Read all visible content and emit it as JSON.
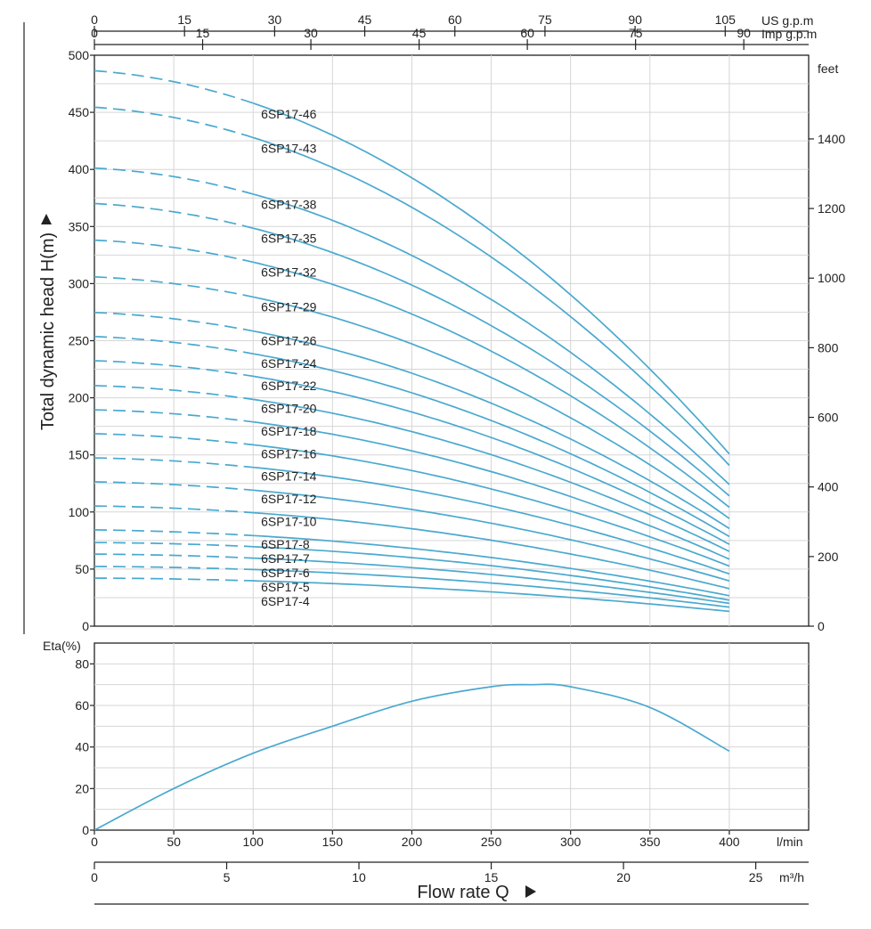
{
  "colors": {
    "curve": "#4aa9cf",
    "axis": "#222222",
    "grid": "#d6d6d6"
  },
  "chart_data": [
    {
      "type": "line",
      "ylabel": "Total dynamic head H(m)",
      "xlim": [
        0,
        450
      ],
      "ylim": [
        0,
        500
      ],
      "x_unit": "l/min",
      "y_ticks": [
        0,
        50,
        100,
        150,
        200,
        250,
        300,
        350,
        400,
        450,
        500
      ],
      "right_axis": {
        "unit": "feet",
        "ticks": [
          0,
          200,
          400,
          600,
          800,
          1000,
          1200,
          1400
        ],
        "factor": 3.28084
      },
      "top_axes": [
        {
          "unit": "US g.p.m",
          "ticks": [
            0,
            15,
            30,
            45,
            60,
            75,
            90,
            105
          ],
          "lmin_per_unit": 3.785
        },
        {
          "unit": "Imp g.p.m",
          "ticks": [
            0,
            15,
            30,
            45,
            60,
            75,
            90
          ],
          "lmin_per_unit": 4.546
        }
      ],
      "x_curve": [
        0,
        100,
        200,
        300,
        400
      ],
      "dashed_until": 100,
      "series": [
        {
          "name": "6SP17-46",
          "values": [
            485,
            461,
            392,
            288,
            152
          ]
        },
        {
          "name": "6SP17-43",
          "values": [
            453,
            431,
            366,
            269,
            142
          ]
        },
        {
          "name": "6SP17-38",
          "values": [
            400,
            381,
            324,
            238,
            125
          ]
        },
        {
          "name": "6SP17-35",
          "values": [
            369,
            351,
            298,
            219,
            115
          ]
        },
        {
          "name": "6SP17-32",
          "values": [
            337,
            321,
            273,
            200,
            105
          ]
        },
        {
          "name": "6SP17-29",
          "values": [
            305,
            290,
            247,
            181,
            95
          ]
        },
        {
          "name": "6SP17-26",
          "values": [
            274,
            260,
            221,
            163,
            86
          ]
        },
        {
          "name": "6SP17-24",
          "values": [
            253,
            240,
            204,
            150,
            79
          ]
        },
        {
          "name": "6SP17-22",
          "values": [
            232,
            220,
            187,
            138,
            72
          ]
        },
        {
          "name": "6SP17-20",
          "values": [
            210,
            200,
            170,
            125,
            66
          ]
        },
        {
          "name": "6SP17-18",
          "values": [
            189,
            180,
            153,
            113,
            59
          ]
        },
        {
          "name": "6SP17-16",
          "values": [
            168,
            160,
            136,
            100,
            53
          ]
        },
        {
          "name": "6SP17-14",
          "values": [
            147,
            140,
            119,
            88,
            46
          ]
        },
        {
          "name": "6SP17-12",
          "values": [
            126,
            120,
            102,
            75,
            40
          ]
        },
        {
          "name": "6SP17-10",
          "values": [
            105,
            100,
            85,
            63,
            33
          ]
        },
        {
          "name": "6SP17-8",
          "values": [
            84,
            80,
            68,
            50,
            27
          ]
        },
        {
          "name": "6SP17-7",
          "values": [
            73,
            70,
            60,
            44,
            23
          ]
        },
        {
          "name": "6SP17-6",
          "values": [
            63,
            60,
            51,
            38,
            20
          ]
        },
        {
          "name": "6SP17-5",
          "values": [
            52,
            50,
            43,
            31,
            17
          ]
        },
        {
          "name": "6SP17-4",
          "values": [
            42,
            40,
            34,
            25,
            13
          ]
        }
      ]
    },
    {
      "type": "line",
      "ylabel": "Eta(%)",
      "xlim": [
        0,
        450
      ],
      "ylim": [
        0,
        90
      ],
      "y_ticks": [
        0,
        20,
        40,
        60,
        80
      ],
      "x_ticks": [
        0,
        50,
        100,
        150,
        200,
        250,
        300,
        350,
        400
      ],
      "x_unit": "l/min",
      "series": [
        {
          "name": "",
          "x": [
            0,
            50,
            100,
            150,
            200,
            250,
            275,
            300,
            350,
            400
          ],
          "values": [
            0,
            20,
            37,
            50,
            62,
            69,
            70,
            69,
            59,
            38
          ]
        }
      ]
    }
  ],
  "bottom_axis": {
    "unit": "m³/h",
    "ticks": [
      0,
      5,
      10,
      15,
      20,
      25
    ],
    "title": "Flow  rate Q"
  }
}
